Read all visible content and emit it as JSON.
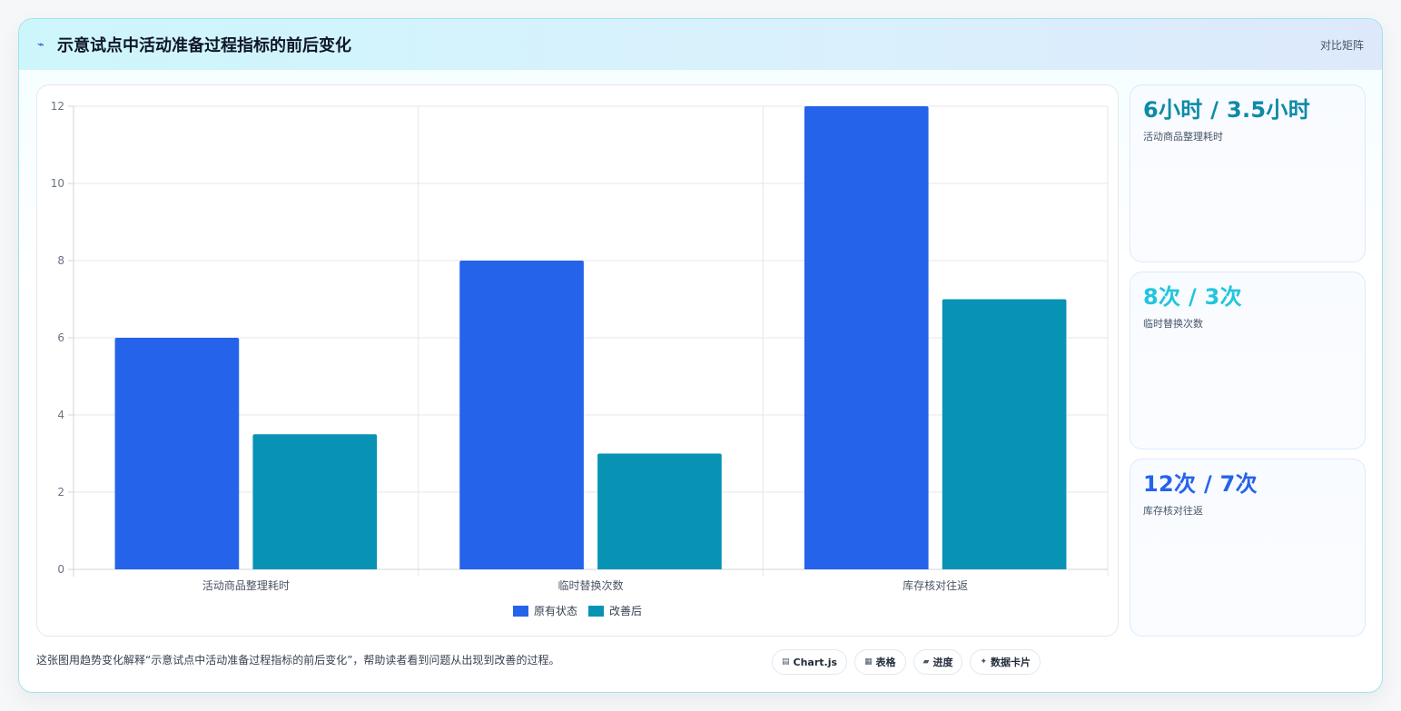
{
  "header": {
    "icon": "bolt-icon",
    "title": "示意试点中活动准备过程指标的前后变化",
    "right_label": "对比矩阵"
  },
  "colors": {
    "before": "#2563eb",
    "after": "#0893b5",
    "kpi1": "#0e8aa8",
    "kpi2": "#22c5de",
    "kpi3": "#2563eb"
  },
  "chart_data": {
    "type": "bar",
    "categories": [
      "活动商品整理耗时",
      "临时替换次数",
      "库存核对往返"
    ],
    "series": [
      {
        "name": "原有状态",
        "values": [
          6,
          8,
          12
        ]
      },
      {
        "name": "改善后",
        "values": [
          3.5,
          3,
          7
        ]
      }
    ],
    "ylim": [
      0,
      12
    ],
    "yticks": [
      "0",
      "2",
      "4",
      "6",
      "8",
      "10",
      "12"
    ],
    "grid": true,
    "legend_position": "bottom"
  },
  "kpis": [
    {
      "value": "6小时 / 3.5小时",
      "label": "活动商品整理耗时"
    },
    {
      "value": "8次 / 3次",
      "label": "临时替换次数"
    },
    {
      "value": "12次 / 7次",
      "label": "库存核对往返"
    }
  ],
  "footer": {
    "caption": "这张图用趋势变化解释“示意试点中活动准备过程指标的前后变化”，帮助读者看到问题从出现到改善的过程。",
    "chips": [
      {
        "icon": "chart-icon",
        "glyph": "▤",
        "label": "Chart.js"
      },
      {
        "icon": "table-icon",
        "glyph": "▦",
        "label": "表格"
      },
      {
        "icon": "progress-icon",
        "glyph": "▰",
        "label": "进度"
      },
      {
        "icon": "sparkle-icon",
        "glyph": "✦",
        "label": "数据卡片"
      }
    ]
  }
}
